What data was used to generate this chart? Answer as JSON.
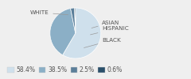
{
  "labels": [
    "WHITE",
    "HISPANIC",
    "BLACK",
    "ASIAN"
  ],
  "values": [
    58.4,
    38.5,
    2.5,
    0.6
  ],
  "colors": [
    "#cfe0ec",
    "#8bafc6",
    "#5b7f9a",
    "#2a4f6a"
  ],
  "legend_labels": [
    "58.4%",
    "38.5%",
    "2.5%",
    "0.6%"
  ],
  "startangle": 90,
  "figsize": [
    2.4,
    1.0
  ],
  "dpi": 100,
  "bg_color": "#efefef"
}
